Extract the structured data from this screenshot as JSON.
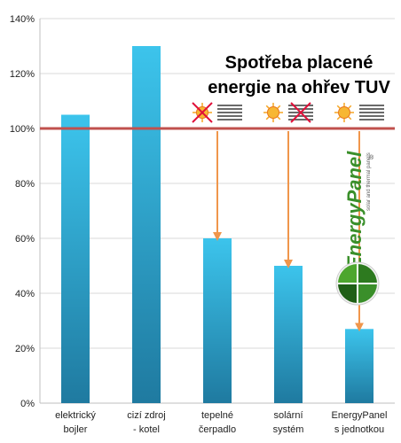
{
  "chart_data": {
    "type": "bar",
    "title_lines": [
      "Spotřeba placené",
      "energie na ohřev TUV"
    ],
    "xlabel": "",
    "ylabel": "",
    "ylim": [
      0,
      140
    ],
    "y_ticks": [
      "0%",
      "20%",
      "40%",
      "60%",
      "80%",
      "100%",
      "120%",
      "140%"
    ],
    "grid": true,
    "reference_line": {
      "value": 100,
      "color": "#c0504d"
    },
    "categories": [
      [
        "elektrický",
        "bojler"
      ],
      [
        "cizí zdroj",
        "- kotel"
      ],
      [
        "tepelné",
        "čerpadlo"
      ],
      [
        "solární",
        "systém"
      ],
      [
        "EnergyPanel",
        "s jednotkou"
      ]
    ],
    "values": [
      105,
      130,
      60,
      50,
      27
    ],
    "colors": {
      "bar_top": "#3cc4ec",
      "bar_bottom": "#1f7aa0",
      "arrow": "#f0964b",
      "grid": "#d9d9d9",
      "ref_line": "#c0504d",
      "cross": "#e0103a",
      "logo_green": "#3a8f2a"
    },
    "markers": [
      {
        "category_index": 2,
        "icons": [
          "crossed-sun-icon",
          "lines-icon"
        ]
      },
      {
        "category_index": 3,
        "icons": [
          "sun-icon",
          "crossed-lines-icon"
        ]
      },
      {
        "category_index": 4,
        "icons": [
          "sun-icon",
          "lines-icon"
        ]
      }
    ],
    "logo": {
      "brand": "EnergyPanel",
      "tagline": "solar and thermal panels",
      "mark": "®"
    }
  }
}
